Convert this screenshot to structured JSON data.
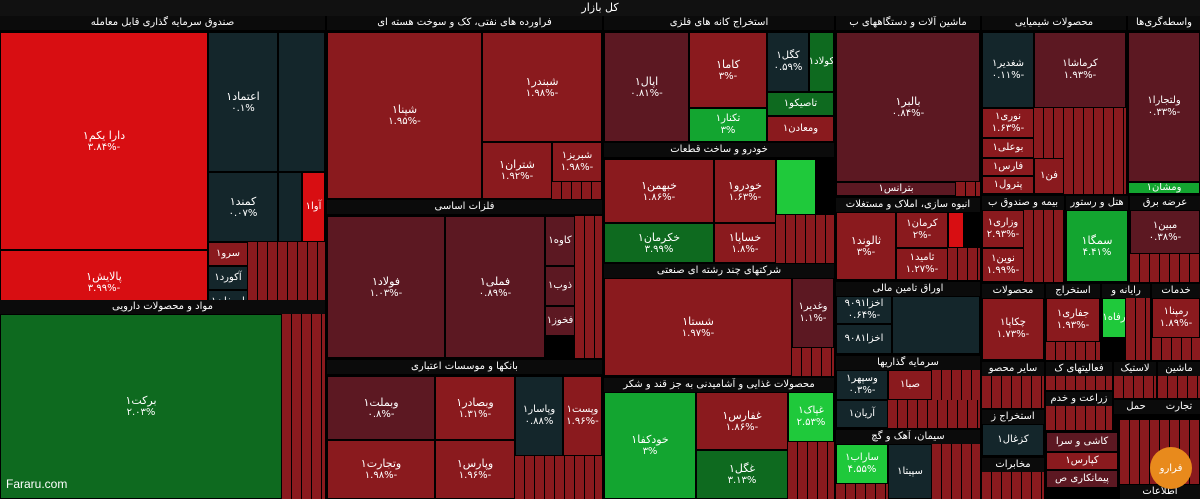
{
  "header": {
    "title": "کل بازار"
  },
  "watermark": "Fararu.com",
  "logo_text": "فرارو",
  "sectors": {
    "fund": "صندوق سرمایه گذاری قابل معامله",
    "refinery": "فراورده های نفتی، کک و سوخت هسته ای",
    "metal_ore": "استخراج کانه های فلزی",
    "machinery": "ماشین آلات و دستگاههای ب",
    "chemical": "محصولات شیمیایی",
    "intermediary": "واسطه‌گری‌ها",
    "pharma": "مواد و محصولات دارویی",
    "basic_metals": "فلزات اساسی",
    "auto": "خودرو و ساخت قطعات",
    "multi": "شرکتهای چند رشته ای صنعتی",
    "banks": "بانکها و موسسات اعتباری",
    "food": "محصولات غذایی و آشامیدنی به جز قند و شکر",
    "construction": "انبوه سازی، املاک و مستغلات",
    "hotel": "هتل و رستور",
    "fund2": "بیمه و صندوق ب",
    "electricity": "عرضه برق",
    "bonds": "اوراق تامین مالی",
    "investment": "سرمایه گذاریها",
    "cement": "سیمان، آهک و گچ",
    "products": "محصولات",
    "mining": "استخراج",
    "computer": "رایانه و",
    "services": "خدمات",
    "other_mining": "سایر محصو",
    "activities": "فعالیتهای ک",
    "machines": "ماشین",
    "plastic": "لاستیک",
    "extraction_z": "استخراج ز",
    "agriculture": "زراعت و خدم",
    "communications": "مخابرات",
    "transport": "حمل",
    "trade": "تجارت",
    "telecom": "اطلاعات"
  },
  "tiles": {
    "darayekom": {
      "name": "دارا یکم۱",
      "pct": "-۳.۸۴%"
    },
    "palayesh": {
      "name": "پالایش۱",
      "pct": "-۳.۹۹%"
    },
    "etemad": {
      "name": "اعتماد۱",
      "pct": "۰.۱%"
    },
    "kamand": {
      "name": "کمند۱",
      "pct": "۰.۰۷%"
    },
    "ava": {
      "name": "آوا۱",
      "pct": "-۲%"
    },
    "sarv": {
      "name": "سرو۱",
      "pct": ""
    },
    "akord": {
      "name": "آکورد۱",
      "pct": ""
    },
    "arman": {
      "name": "ارمغان۱",
      "pct": ""
    },
    "shapna": {
      "name": "شپنا۱",
      "pct": "-۱.۹۵%"
    },
    "shabandar": {
      "name": "شبندر۱",
      "pct": "-۱.۹۸%"
    },
    "shetran": {
      "name": "شتران۱",
      "pct": "-۱.۹۲%"
    },
    "shabriz": {
      "name": "شبریز۱",
      "pct": "-۱.۹۸%"
    },
    "ipal": {
      "name": "اپال۱",
      "pct": "-۰.۸۱%"
    },
    "kama": {
      "name": "کاما۱",
      "pct": "-۳%"
    },
    "kegol": {
      "name": "کگل۱",
      "pct": "۰.۵۹%"
    },
    "kalad": {
      "name": "کولاد۱",
      "pct": "۰.۵۲%"
    },
    "tapikoo": {
      "name": "تاصیکو۱",
      "pct": ""
    },
    "tekarad": {
      "name": "تکنار۱",
      "pct": "۳%"
    },
    "vamadan": {
      "name": "ومعادن۱",
      "pct": ""
    },
    "baler": {
      "name": "بالبر۱",
      "pct": "-۰.۸۴%"
    },
    "baterans": {
      "name": "بترانس۱",
      "pct": ""
    },
    "shaghadir": {
      "name": "شغدیر۱",
      "pct": "-۰.۱۱%"
    },
    "nori": {
      "name": "نوری۱",
      "pct": "-۱.۶۳%"
    },
    "boali": {
      "name": "بوعلی۱",
      "pct": ""
    },
    "fares": {
      "name": "فارس۱",
      "pct": ""
    },
    "petrol": {
      "name": "پترول۱",
      "pct": ""
    },
    "fan": {
      "name": "فن۱",
      "pct": ""
    },
    "kerma": {
      "name": "کرماشا۱",
      "pct": "-۱.۹۳%"
    },
    "valtjara": {
      "name": "ولتجارا۱",
      "pct": "-۰.۳۳%"
    },
    "vamshan": {
      "name": "ومشان۱",
      "pct": ""
    },
    "barkat": {
      "name": "برکت۱",
      "pct": "۲.۰۳%"
    },
    "foolad": {
      "name": "فولاد۱",
      "pct": "-۱.۰۳%"
    },
    "femeli": {
      "name": "فملی۱",
      "pct": "-۰.۸۹%"
    },
    "kave": {
      "name": "کاوه۱",
      "pct": ""
    },
    "zob": {
      "name": "ذوب۱",
      "pct": ""
    },
    "fakhoz": {
      "name": "فخوز۱",
      "pct": ""
    },
    "khabahman": {
      "name": "خبهمن۱",
      "pct": "-۱.۸۶%"
    },
    "khodro": {
      "name": "خودرو۱",
      "pct": "-۱.۶۳%"
    },
    "khegostar": {
      "name": "خکرمان۱",
      "pct": "۳.۹۹%"
    },
    "khasapa": {
      "name": "خساپا۱",
      "pct": "-۱.۸%"
    },
    "shasta": {
      "name": "شستا۱",
      "pct": "-۱.۹۷%"
    },
    "vaghadir": {
      "name": "وغدیر۱",
      "pct": "-۱.۱%"
    },
    "vebmelat": {
      "name": "وبملت۱",
      "pct": "-۰.۸%"
    },
    "vebsader": {
      "name": "وبصادر۱",
      "pct": "-۱.۳۱%"
    },
    "vepasar": {
      "name": "وپاسار۱",
      "pct": "۰.۸۸%"
    },
    "vepost": {
      "name": "وپست۱",
      "pct": "-۱.۹۶%"
    },
    "vatejarat": {
      "name": "وتجارت۱",
      "pct": "-۱.۹۸%"
    },
    "vaparsi": {
      "name": "وپارس۱",
      "pct": "-۱.۹۶%"
    },
    "khodkafa": {
      "name": "خودکفا۱",
      "pct": "۳%"
    },
    "ghafars": {
      "name": "غفارس۱",
      "pct": "-۱.۸۶%"
    },
    "ghegol": {
      "name": "غگل۱",
      "pct": "۳.۱۳%"
    },
    "ghapak": {
      "name": "غپاک۱",
      "pct": "۲.۵۳%"
    },
    "salond": {
      "name": "ثالوند۱",
      "pct": "-۳%"
    },
    "kerman": {
      "name": "کرمان۱",
      "pct": "-۲%"
    },
    "saband": {
      "name": "ثامید۱",
      "pct": "-۱.۲۷%"
    },
    "vazarei": {
      "name": "وزاری۱",
      "pct": "-۲.۹۳%"
    },
    "nowin": {
      "name": "نوین۱",
      "pct": "-۱.۹۹%"
    },
    "samga": {
      "name": "سمگا۱",
      "pct": "۴.۴۱%"
    },
    "mabin": {
      "name": "مبین۱",
      "pct": "-۰.۳۸%"
    },
    "akhza1": {
      "name": "اخزا۹۰۹۱",
      "pct": "-۰.۶۴%"
    },
    "akhza2": {
      "name": "اخزا۹۰۸۱",
      "pct": ""
    },
    "vasapeh": {
      "name": "وسپهر۱",
      "pct": "-۰.۳%"
    },
    "sina": {
      "name": "صبا۱",
      "pct": ""
    },
    "arian": {
      "name": "آریان۱",
      "pct": ""
    },
    "saraab": {
      "name": "ساراب۱",
      "pct": "۴.۵۵%"
    },
    "sipita": {
      "name": "سپیتا۱",
      "pct": ""
    },
    "chekapa": {
      "name": "چکاپا۱",
      "pct": "-۱.۷۳%"
    },
    "jafari": {
      "name": "جفاری۱",
      "pct": "-۱.۹۳%"
    },
    "radin": {
      "name": "رفاه۱",
      "pct": "-۴%"
    },
    "rampna": {
      "name": "رمپنا۱",
      "pct": "-۱.۸۹%"
    },
    "kazhal": {
      "name": "کزغال۱",
      "pct": ""
    },
    "kashi": {
      "name": "کاشی و سرا",
      "pct": ""
    },
    "kbaris": {
      "name": "کپارس۱",
      "pct": ""
    },
    "peymankari": {
      "name": "پیمانکاری ص",
      "pct": ""
    }
  }
}
